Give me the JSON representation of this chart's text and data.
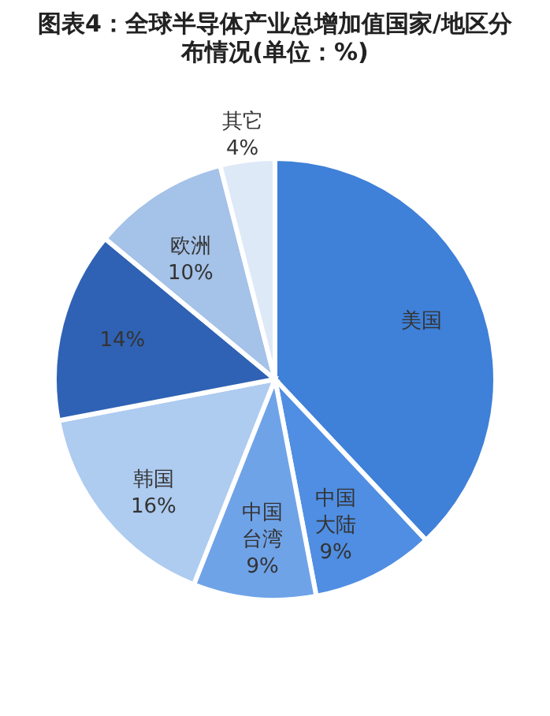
{
  "chart_data": {
    "type": "pie",
    "title": "图表4：全球半导体产业总增加值国家/地区分布情况(单位：%)",
    "categories": [
      "美国",
      "中国大陆",
      "中国台湾",
      "韩国",
      null,
      "欧洲",
      "其它"
    ],
    "values": [
      38,
      9,
      9,
      16,
      14,
      10,
      4
    ],
    "value_labels": [
      null,
      "9%",
      "9%",
      "16%",
      "14%",
      "10%",
      "4%"
    ],
    "colors": [
      "#3f80d8",
      "#4f8ee2",
      "#6fa3e8",
      "#aecbf0",
      "#2f62b4",
      "#a5c2e8",
      "#dde9f7"
    ]
  }
}
